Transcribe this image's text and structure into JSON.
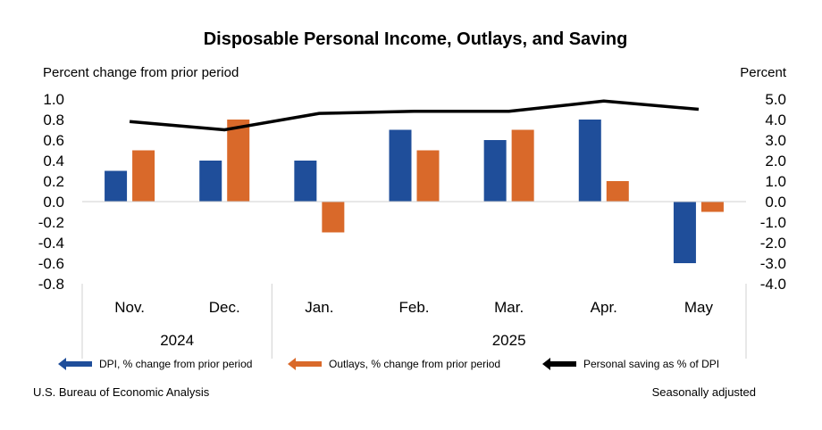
{
  "chart_data": {
    "type": "bar",
    "title": "Disposable Personal Income, Outlays, and Saving",
    "ylabel_left": "Percent change from prior period",
    "ylabel_right": "Percent",
    "categories": [
      "Nov.",
      "Dec.",
      "Jan.",
      "Feb.",
      "Mar.",
      "Apr.",
      "May"
    ],
    "year_groups": [
      {
        "label": "2024",
        "start": 0,
        "end": 1
      },
      {
        "label": "2025",
        "start": 2,
        "end": 6
      }
    ],
    "ylim_left": [
      -0.8,
      1.0
    ],
    "left_ticks": [
      "1.0",
      "0.8",
      "0.6",
      "0.4",
      "0.2",
      "0.0",
      "-0.2",
      "-0.4",
      "-0.6",
      "-0.8"
    ],
    "ylim_right": [
      -4.0,
      5.0
    ],
    "right_ticks": [
      "5.0",
      "4.0",
      "3.0",
      "2.0",
      "1.0",
      "0.0",
      "-1.0",
      "-2.0",
      "-3.0",
      "-4.0"
    ],
    "series": [
      {
        "name": "DPI, % change from prior period",
        "type": "bar",
        "axis": "left",
        "color": "#1f4e9a",
        "values": [
          0.3,
          0.4,
          0.4,
          0.7,
          0.6,
          0.8,
          -0.6
        ]
      },
      {
        "name": "Outlays, % change from prior period",
        "type": "bar",
        "axis": "left",
        "color": "#d9692a",
        "values": [
          0.5,
          0.8,
          -0.3,
          0.5,
          0.7,
          0.2,
          -0.1
        ]
      },
      {
        "name": "Personal saving as % of DPI",
        "type": "line",
        "axis": "right",
        "color": "#000000",
        "values": [
          3.9,
          3.5,
          4.3,
          4.4,
          4.4,
          4.9,
          4.5
        ]
      }
    ],
    "grid": false
  },
  "footer": {
    "source": "U.S. Bureau of Economic Analysis",
    "note": "Seasonally adjusted"
  }
}
